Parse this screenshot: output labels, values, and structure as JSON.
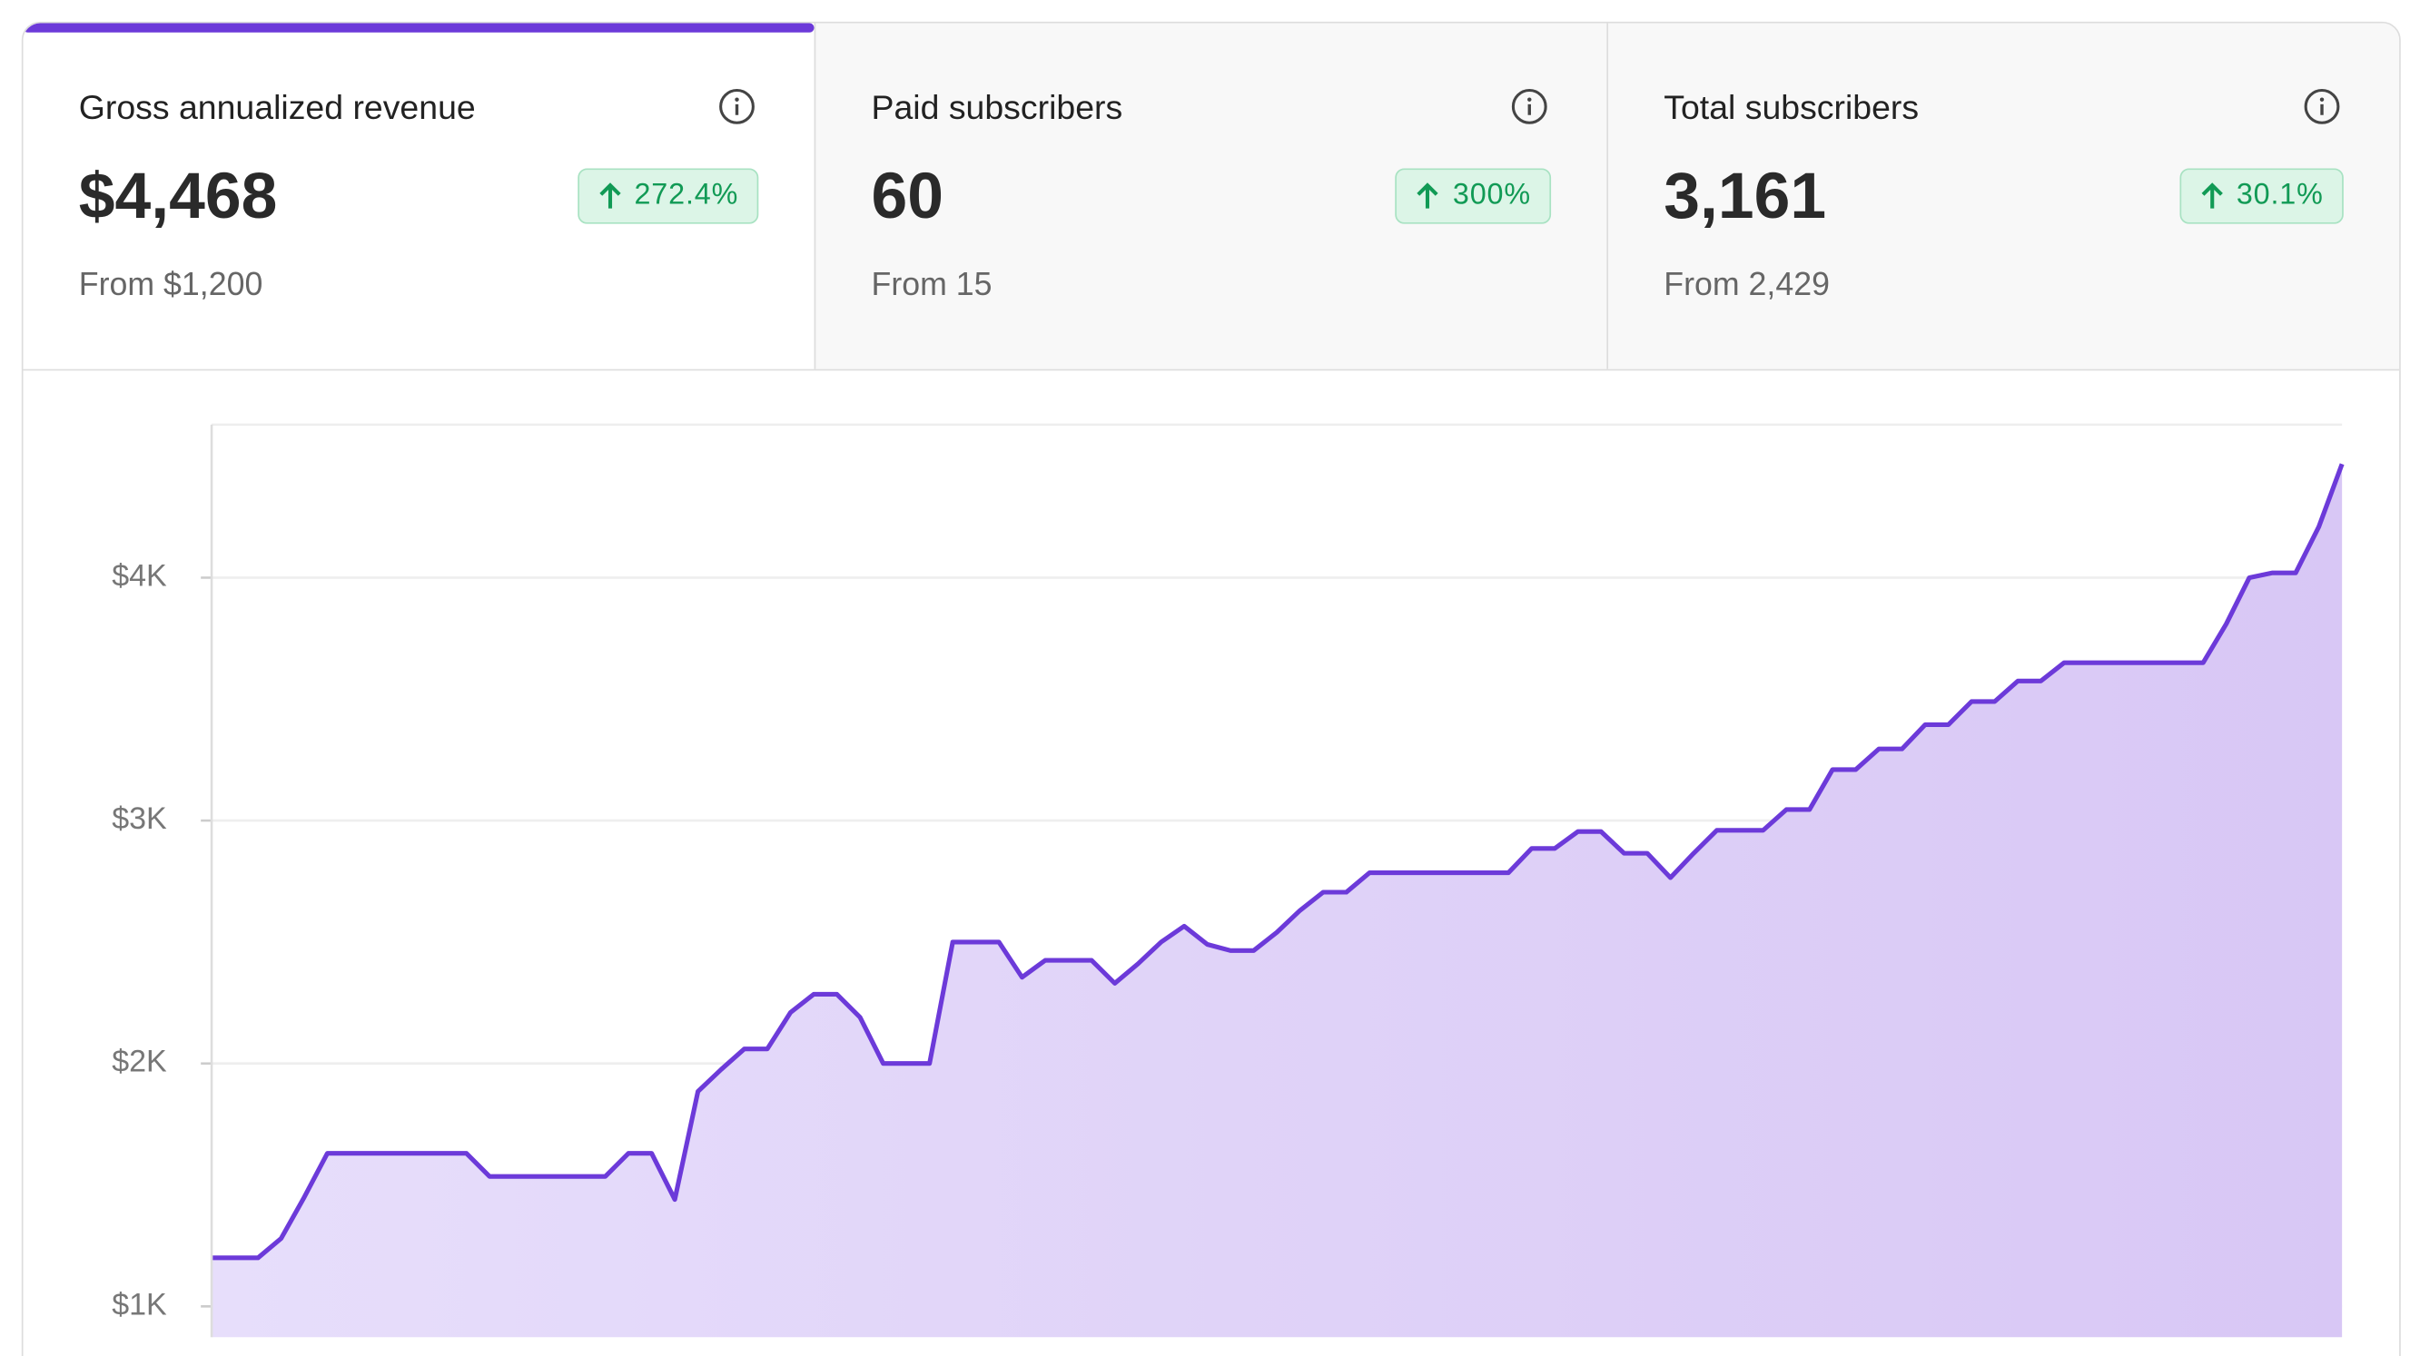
{
  "cards": [
    {
      "label": "Gross annualized revenue",
      "value": "$4,468",
      "change": "272.4%",
      "from": "From $1,200"
    },
    {
      "label": "Paid subscribers",
      "value": "60",
      "change": "300%",
      "from": "From 15"
    },
    {
      "label": "Total subscribers",
      "value": "3,161",
      "change": "30.1%",
      "from": "From 2,429"
    }
  ],
  "chart_data": {
    "type": "area",
    "color": "#6c3ad9",
    "fill": "#dccff7",
    "ylim": [
      873,
      4630
    ],
    "yticks": [
      {
        "value": 1000,
        "label": "$1K"
      },
      {
        "value": 2000,
        "label": "$2K"
      },
      {
        "value": 3000,
        "label": "$3K"
      },
      {
        "value": 4000,
        "label": "$4K"
      }
    ],
    "grid": true,
    "values": [
      1200,
      1200,
      1200,
      1280,
      1450,
      1630,
      1630,
      1630,
      1630,
      1630,
      1630,
      1630,
      1535,
      1535,
      1535,
      1535,
      1535,
      1535,
      1630,
      1630,
      1440,
      1885,
      1975,
      2060,
      2060,
      2210,
      2285,
      2285,
      2190,
      2000,
      2000,
      2000,
      2500,
      2500,
      2500,
      2355,
      2425,
      2425,
      2425,
      2330,
      2410,
      2500,
      2565,
      2490,
      2465,
      2465,
      2540,
      2630,
      2705,
      2705,
      2785,
      2785,
      2785,
      2785,
      2785,
      2785,
      2785,
      2885,
      2885,
      2955,
      2955,
      2865,
      2865,
      2765,
      2865,
      2960,
      2960,
      2960,
      3045,
      3045,
      3210,
      3210,
      3295,
      3295,
      3395,
      3395,
      3490,
      3490,
      3575,
      3575,
      3650,
      3650,
      3650,
      3650,
      3650,
      3650,
      3650,
      3810,
      4000,
      4020,
      4020,
      4210,
      4468
    ]
  }
}
